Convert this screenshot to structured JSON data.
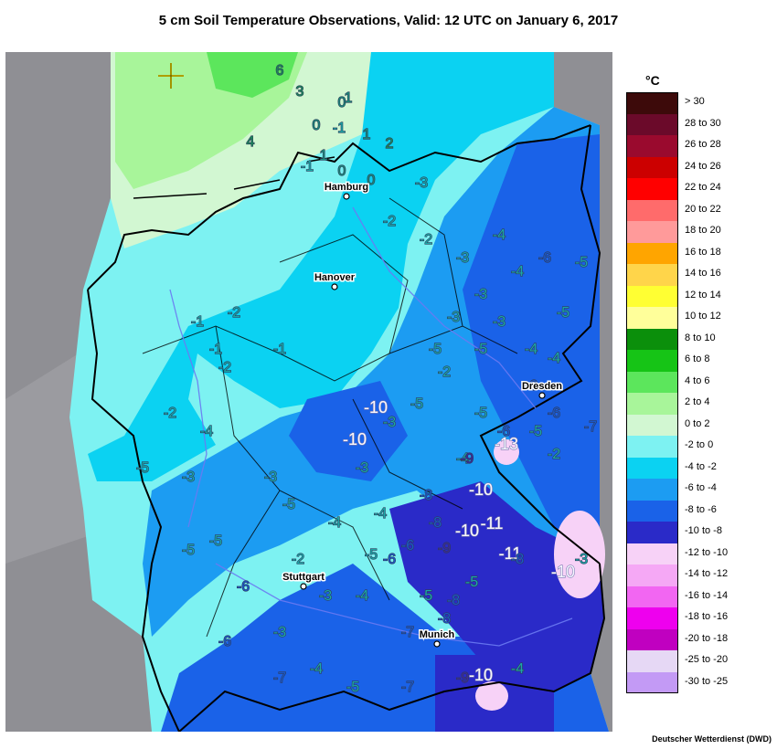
{
  "title": "5 cm Soil Temperature Observations, Valid: 12 UTC on January 6, 2017",
  "legend": {
    "unit": "°C",
    "classes": [
      {
        "label": "> 30",
        "color": "#3d0a0a"
      },
      {
        "label": "28 to 30",
        "color": "#6b0a2a"
      },
      {
        "label": "26 to 28",
        "color": "#9a0a2e"
      },
      {
        "label": "24 to 26",
        "color": "#cc0000"
      },
      {
        "label": "22 to 24",
        "color": "#ff0000"
      },
      {
        "label": "20 to 22",
        "color": "#ff6b6b"
      },
      {
        "label": "18 to 20",
        "color": "#ff9a9a"
      },
      {
        "label": "16 to 18",
        "color": "#ffa500"
      },
      {
        "label": "14 to 16",
        "color": "#ffd54a"
      },
      {
        "label": "12 to 14",
        "color": "#ffff33"
      },
      {
        "label": "10 to 12",
        "color": "#ffff9a"
      },
      {
        "label": "8 to 10",
        "color": "#0b8f0b"
      },
      {
        "label": "6 to 8",
        "color": "#16c416"
      },
      {
        "label": "4 to 6",
        "color": "#5ce65c"
      },
      {
        "label": "2 to 4",
        "color": "#a8f59a"
      },
      {
        "label": "0 to 2",
        "color": "#d2f7d2"
      },
      {
        "label": "-2 to 0",
        "color": "#7df2f2"
      },
      {
        "label": "-4 to -2",
        "color": "#0bd2f2"
      },
      {
        "label": "-6 to -4",
        "color": "#1c9cf2"
      },
      {
        "label": "-8 to -6",
        "color": "#1a62e8"
      },
      {
        "label": "-10 to -8",
        "color": "#2a2ac8"
      },
      {
        "label": "-12 to -10",
        "color": "#f7d2f7"
      },
      {
        "label": "-14 to -12",
        "color": "#f5a8f5"
      },
      {
        "label": "-16 to -14",
        "color": "#f266f2"
      },
      {
        "label": "-18 to -16",
        "color": "#ee00ee"
      },
      {
        "label": "-20 to -18",
        "color": "#c000c0"
      },
      {
        "label": "-25 to -20",
        "color": "#e6d8f5"
      },
      {
        "label": "-30 to -25",
        "color": "#c39af5"
      }
    ]
  },
  "cities": [
    {
      "name": "Hamburg"
    },
    {
      "name": "Hanover"
    },
    {
      "name": "Dresden"
    },
    {
      "name": "Stuttgart"
    },
    {
      "name": "Munich"
    }
  ],
  "observations": [
    "6",
    "3",
    "0",
    "1",
    "4",
    "0",
    "-1",
    "1",
    "2",
    "-1",
    "1",
    "0",
    "-3",
    "0",
    "-2",
    "-2",
    "-3",
    "-4",
    "-4",
    "-3",
    "-6",
    "-3",
    "-3",
    "-4",
    "-5",
    "-5",
    "-4",
    "-5",
    "-6",
    "-6",
    "-5",
    "-2",
    "-5",
    "-3",
    "-5",
    "-6",
    "-4",
    "-5",
    "-7",
    "-2",
    "-10",
    "-10",
    "-13",
    "-9",
    "-10",
    "-8",
    "-11",
    "-9",
    "-10",
    "-11",
    "-8",
    "-10",
    "-8",
    "-6",
    "-5",
    "-4",
    "-5",
    "-3",
    "-2",
    "-1",
    "-1",
    "-3",
    "-4",
    "-5",
    "-7",
    "-5",
    "-8",
    "-7",
    "-9",
    "-8",
    "-10",
    "-4",
    "-3",
    "-2",
    "-1",
    "-2",
    "-5",
    "-6",
    "-3",
    "-4",
    "-5",
    "-6",
    "-4",
    "-3",
    "-2",
    "-5",
    "-6",
    "-7",
    "-4",
    "-3",
    "-5"
  ],
  "credit": "Deutscher Wetterdienst (DWD)",
  "marker_icon": "crosshair-marker"
}
